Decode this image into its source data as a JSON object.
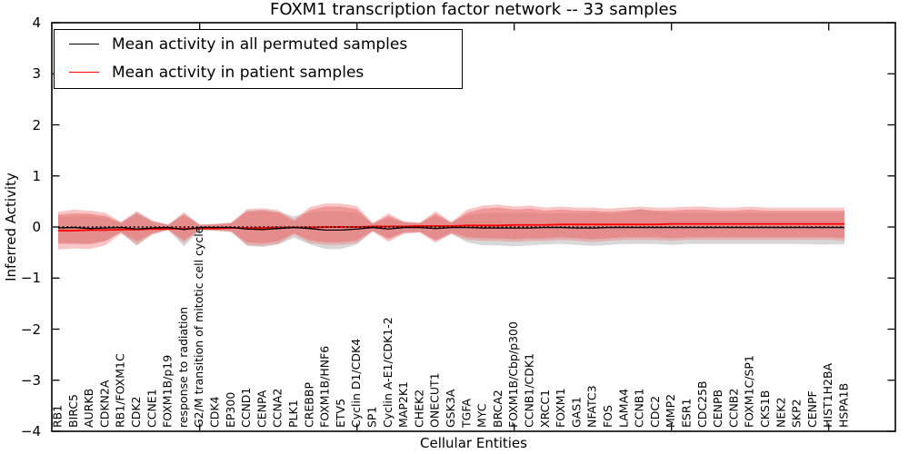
{
  "figure": {
    "title": "FOXM1 transcription factor network -- 33 samples",
    "background": "#ffffff"
  },
  "axes": {
    "xlabel": "Cellular Entities",
    "ylabel": "Inferred Activity",
    "ytick_labels": [
      "4",
      "3",
      "2",
      "1",
      "0",
      "−1",
      "−2",
      "−3",
      "−4"
    ]
  },
  "legend": {
    "entries": [
      {
        "label": "Mean activity in all permuted samples",
        "color": "#000000"
      },
      {
        "label": "Mean activity in patient samples",
        "color": "#ff0000"
      }
    ]
  },
  "chart_data": {
    "type": "area",
    "title": "FOXM1 transcription factor network -- 33 samples",
    "xlabel": "Cellular Entities",
    "ylabel": "Inferred Activity",
    "ylim": [
      -4,
      4
    ],
    "yticks": [
      4,
      3,
      2,
      1,
      0,
      -1,
      -2,
      -3,
      -4
    ],
    "xtick_indices": [
      9,
      19,
      29,
      39,
      49
    ],
    "grid": false,
    "legend_position": "upper left",
    "categories": [
      "RB1",
      "BIRC5",
      "AURKB",
      "CDKN2A",
      "RB1/FOXM1C",
      "CDK2",
      "CCNE1",
      "FOXM1B/p19",
      "response to radiation",
      "G2/M transition of mitotic cell cycle",
      "CDK4",
      "EP300",
      "CCND1",
      "CENPA",
      "CCNA2",
      "PLK1",
      "CREBBP",
      "FOXM1B/HNF6",
      "ETV5",
      "Cyclin D1/CDK4",
      "SP1",
      "Cyclin A-E1/CDK1-2",
      "MAP2K1",
      "CHEK2",
      "ONECUT1",
      "GSK3A",
      "TGFA",
      "MYC",
      "BRCA2",
      "FOXM1B/Cbp/p300",
      "CCNB1/CDK1",
      "XRCC1",
      "FOXM1",
      "GAS1",
      "NFATC3",
      "FOS",
      "LAMA4",
      "CCNB1",
      "CDC2",
      "MMP2",
      "ESR1",
      "CDC25B",
      "CENPB",
      "CCNB2",
      "FOXM1C/SP1",
      "CKS1B",
      "NEK2",
      "SKP2",
      "CENPF",
      "HIST1H2BA",
      "HSPA1B"
    ],
    "series": [
      {
        "name": "Mean activity in all permuted samples",
        "color": "#000000",
        "line": "solid",
        "values": [
          -0.02,
          -0.01,
          -0.03,
          -0.02,
          -0.01,
          -0.04,
          -0.02,
          -0.01,
          -0.05,
          -0.01,
          -0.01,
          -0.01,
          -0.04,
          -0.05,
          -0.03,
          -0.01,
          -0.03,
          -0.06,
          -0.06,
          -0.04,
          -0.01,
          -0.04,
          -0.01,
          -0.01,
          -0.03,
          -0.01,
          -0.01,
          -0.02,
          -0.02,
          -0.02,
          -0.02,
          -0.01,
          -0.01,
          -0.02,
          -0.02,
          -0.01,
          -0.01,
          -0.01,
          -0.01,
          -0.01,
          -0.01,
          -0.01,
          -0.01,
          -0.01,
          -0.01,
          -0.01,
          -0.01,
          -0.01,
          -0.01,
          -0.01,
          -0.01
        ]
      },
      {
        "name": "Mean activity in patient samples",
        "color": "#ff0000",
        "line": "solid",
        "values": [
          -0.07,
          -0.07,
          -0.06,
          -0.06,
          -0.05,
          -0.05,
          -0.04,
          -0.04,
          -0.03,
          -0.03,
          -0.03,
          -0.02,
          -0.02,
          -0.02,
          -0.01,
          -0.01,
          -0.01,
          0.0,
          0.0,
          0.0,
          0.01,
          0.01,
          0.01,
          0.02,
          0.02,
          0.02,
          0.03,
          0.03,
          0.03,
          0.04,
          0.04,
          0.04,
          0.05,
          0.05,
          0.05,
          0.05,
          0.05,
          0.05,
          0.05,
          0.06,
          0.06,
          0.06,
          0.06,
          0.06,
          0.06,
          0.06,
          0.06,
          0.06,
          0.06,
          0.06,
          0.06
        ]
      }
    ],
    "zero_reference_line": {
      "y": 0,
      "color": "#000000",
      "line": "dotted"
    },
    "bands": [
      {
        "name": "permuted-range",
        "color": "#b8b8b8",
        "opacity": 0.55,
        "upper": [
          0.2,
          0.22,
          0.22,
          0.18,
          0.09,
          0.3,
          0.11,
          0.05,
          0.26,
          0.05,
          0.06,
          0.08,
          0.32,
          0.34,
          0.3,
          0.21,
          0.29,
          0.31,
          0.31,
          0.28,
          0.07,
          0.18,
          0.1,
          0.08,
          0.22,
          0.09,
          0.24,
          0.27,
          0.28,
          0.28,
          0.28,
          0.26,
          0.27,
          0.26,
          0.28,
          0.26,
          0.28,
          0.36,
          0.3,
          0.28,
          0.28,
          0.28,
          0.28,
          0.28,
          0.28,
          0.28,
          0.28,
          0.28,
          0.28,
          0.28,
          0.28
        ],
        "lower": [
          -0.3,
          -0.31,
          -0.32,
          -0.26,
          -0.11,
          -0.37,
          -0.13,
          -0.06,
          -0.38,
          -0.06,
          -0.07,
          -0.09,
          -0.37,
          -0.39,
          -0.34,
          -0.21,
          -0.34,
          -0.43,
          -0.43,
          -0.34,
          -0.08,
          -0.22,
          -0.12,
          -0.1,
          -0.27,
          -0.13,
          -0.3,
          -0.36,
          -0.36,
          -0.38,
          -0.36,
          -0.34,
          -0.33,
          -0.35,
          -0.37,
          -0.35,
          -0.33,
          -0.33,
          -0.33,
          -0.35,
          -0.33,
          -0.33,
          -0.33,
          -0.33,
          -0.33,
          -0.33,
          -0.33,
          -0.33,
          -0.34,
          -0.34,
          -0.34
        ]
      },
      {
        "name": "patient-range-outer",
        "color": "#f08080",
        "opacity": 0.45,
        "upper": [
          0.3,
          0.34,
          0.32,
          0.28,
          0.1,
          0.31,
          0.13,
          0.05,
          0.29,
          0.05,
          0.06,
          0.09,
          0.35,
          0.37,
          0.33,
          0.15,
          0.39,
          0.46,
          0.46,
          0.41,
          0.08,
          0.27,
          0.11,
          0.09,
          0.31,
          0.1,
          0.34,
          0.42,
          0.44,
          0.4,
          0.42,
          0.38,
          0.4,
          0.38,
          0.38,
          0.36,
          0.38,
          0.4,
          0.38,
          0.38,
          0.4,
          0.4,
          0.38,
          0.38,
          0.4,
          0.38,
          0.38,
          0.38,
          0.38,
          0.38,
          0.38
        ],
        "lower": [
          -0.44,
          -0.42,
          -0.43,
          -0.36,
          -0.13,
          -0.34,
          -0.15,
          -0.06,
          -0.31,
          -0.06,
          -0.07,
          -0.1,
          -0.35,
          -0.37,
          -0.33,
          -0.15,
          -0.31,
          -0.35,
          -0.35,
          -0.31,
          -0.09,
          -0.29,
          -0.13,
          -0.11,
          -0.31,
          -0.14,
          -0.25,
          -0.27,
          -0.27,
          -0.29,
          -0.27,
          -0.27,
          -0.25,
          -0.27,
          -0.29,
          -0.27,
          -0.25,
          -0.25,
          -0.25,
          -0.27,
          -0.25,
          -0.25,
          -0.25,
          -0.25,
          -0.25,
          -0.25,
          -0.25,
          -0.25,
          -0.25,
          -0.25,
          -0.27
        ]
      },
      {
        "name": "patient-range-inner",
        "color": "#e86a6a",
        "opacity": 0.5,
        "upper": [
          0.24,
          0.27,
          0.26,
          0.22,
          0.08,
          0.26,
          0.1,
          0.04,
          0.24,
          0.04,
          0.05,
          0.07,
          0.3,
          0.32,
          0.28,
          0.12,
          0.33,
          0.4,
          0.4,
          0.35,
          0.06,
          0.22,
          0.09,
          0.07,
          0.26,
          0.08,
          0.28,
          0.36,
          0.38,
          0.34,
          0.36,
          0.32,
          0.34,
          0.32,
          0.32,
          0.3,
          0.32,
          0.34,
          0.32,
          0.32,
          0.34,
          0.34,
          0.32,
          0.32,
          0.34,
          0.32,
          0.32,
          0.32,
          0.32,
          0.32,
          0.32
        ],
        "lower": [
          -0.33,
          -0.33,
          -0.34,
          -0.28,
          -0.1,
          -0.28,
          -0.12,
          -0.05,
          -0.26,
          -0.05,
          -0.06,
          -0.08,
          -0.3,
          -0.32,
          -0.28,
          -0.12,
          -0.26,
          -0.3,
          -0.3,
          -0.26,
          -0.07,
          -0.24,
          -0.1,
          -0.09,
          -0.26,
          -0.11,
          -0.2,
          -0.22,
          -0.22,
          -0.24,
          -0.22,
          -0.22,
          -0.2,
          -0.22,
          -0.24,
          -0.22,
          -0.2,
          -0.2,
          -0.2,
          -0.22,
          -0.2,
          -0.2,
          -0.2,
          -0.2,
          -0.2,
          -0.2,
          -0.2,
          -0.2,
          -0.2,
          -0.2,
          -0.22
        ]
      }
    ]
  }
}
